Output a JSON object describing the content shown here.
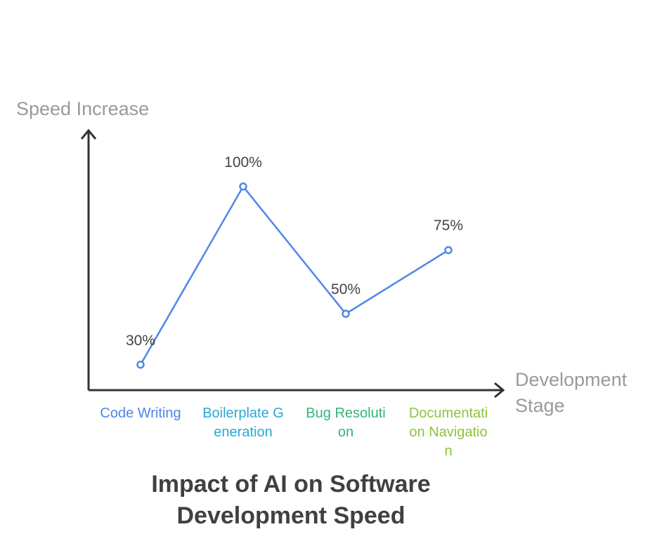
{
  "chart_data": {
    "type": "line",
    "title": "Impact of AI on Software Development Speed",
    "y_label": "Speed Increase",
    "x_label": "Development Stage",
    "categories": [
      "Code Writing",
      "Boilerplate Generation",
      "Bug Resolution",
      "Documentation Navigation"
    ],
    "category_colors": [
      "#4a86e8",
      "#2aa8d6",
      "#33b47a",
      "#8cc43c"
    ],
    "values": [
      30,
      100,
      50,
      75
    ],
    "value_labels": [
      "30%",
      "100%",
      "50%",
      "75%"
    ],
    "color": "#4f88e6",
    "ylim": [
      20,
      122
    ],
    "grid": false
  }
}
